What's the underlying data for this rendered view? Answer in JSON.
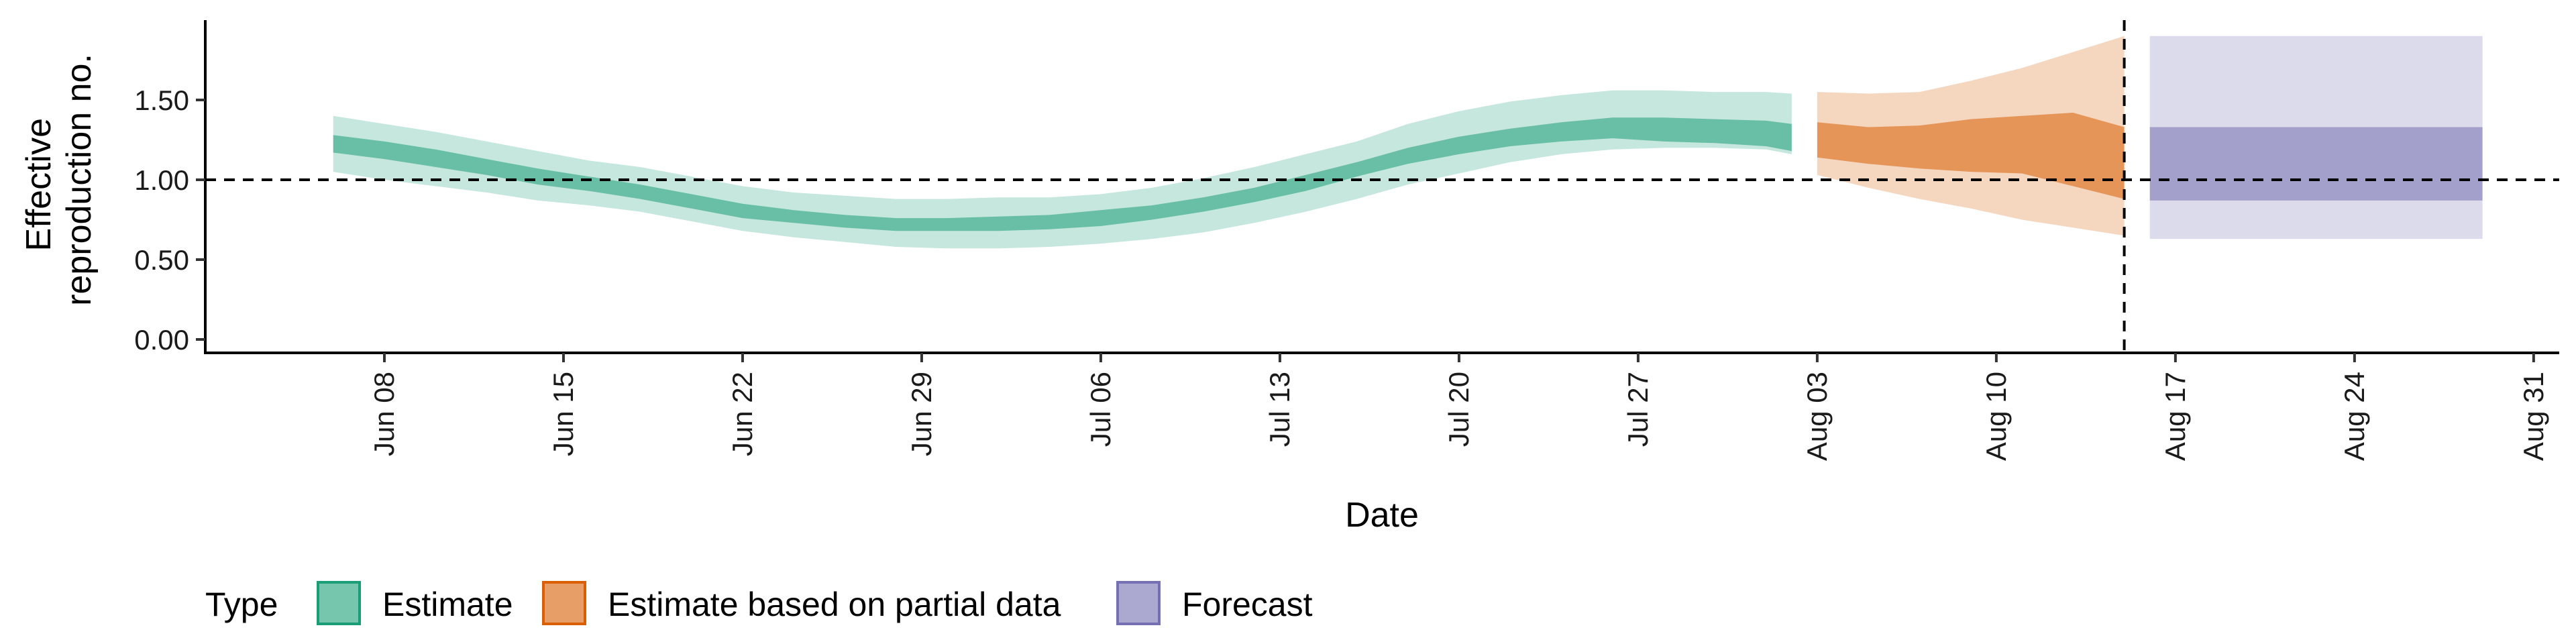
{
  "chart_data": {
    "type": "area",
    "xlabel": "Date",
    "ylabel_lines": [
      "Effective",
      "reproduction no."
    ],
    "ylim": [
      0,
      2.0
    ],
    "y_ticks": [
      0,
      0.5,
      1.0,
      1.5
    ],
    "y_tick_labels": [
      "0.00",
      "0.50",
      "1.00",
      "1.50"
    ],
    "x_range": [
      "2020-06-01",
      "2020-09-01"
    ],
    "x_ticks": [
      "2020-06-08",
      "2020-06-15",
      "2020-06-22",
      "2020-06-29",
      "2020-07-06",
      "2020-07-13",
      "2020-07-20",
      "2020-07-27",
      "2020-08-03",
      "2020-08-10",
      "2020-08-17",
      "2020-08-24",
      "2020-08-31"
    ],
    "x_tick_labels": [
      "Jun 08",
      "Jun 15",
      "Jun 22",
      "Jun 29",
      "Jul 06",
      "Jul 13",
      "Jul 20",
      "Jul 27",
      "Aug 03",
      "Aug 10",
      "Aug 17",
      "Aug 24",
      "Aug 31"
    ],
    "reference_hline": 1.0,
    "reference_vline": "2020-08-15",
    "grid": false,
    "legend": {
      "position": "bottom",
      "title": "Type",
      "entries": [
        "Estimate",
        "Estimate based on partial data",
        "Forecast"
      ]
    },
    "colors": {
      "Estimate": "#1b9e77",
      "Estimate based on partial data": "#d95f02",
      "Forecast": "#7570b3"
    },
    "series": [
      {
        "name": "Estimate",
        "date": [
          "2020-06-06",
          "2020-06-08",
          "2020-06-10",
          "2020-06-12",
          "2020-06-14",
          "2020-06-16",
          "2020-06-18",
          "2020-06-20",
          "2020-06-22",
          "2020-06-24",
          "2020-06-26",
          "2020-06-28",
          "2020-06-30",
          "2020-07-02",
          "2020-07-04",
          "2020-07-06",
          "2020-07-08",
          "2020-07-10",
          "2020-07-12",
          "2020-07-14",
          "2020-07-16",
          "2020-07-18",
          "2020-07-20",
          "2020-07-22",
          "2020-07-24",
          "2020-07-26",
          "2020-07-28",
          "2020-07-30",
          "2020-08-01",
          "2020-08-02"
        ],
        "lower_90": [
          1.05,
          1.0,
          0.96,
          0.92,
          0.87,
          0.84,
          0.8,
          0.74,
          0.68,
          0.64,
          0.61,
          0.58,
          0.57,
          0.57,
          0.58,
          0.6,
          0.63,
          0.67,
          0.73,
          0.8,
          0.88,
          0.97,
          1.04,
          1.11,
          1.16,
          1.19,
          1.2,
          1.2,
          1.19,
          1.16
        ],
        "upper_90": [
          1.4,
          1.35,
          1.3,
          1.24,
          1.18,
          1.12,
          1.08,
          1.02,
          0.96,
          0.92,
          0.9,
          0.88,
          0.88,
          0.89,
          0.89,
          0.91,
          0.95,
          1.01,
          1.08,
          1.16,
          1.24,
          1.35,
          1.43,
          1.49,
          1.53,
          1.56,
          1.56,
          1.55,
          1.55,
          1.54
        ],
        "lower_50": [
          1.17,
          1.13,
          1.08,
          1.03,
          0.97,
          0.93,
          0.88,
          0.82,
          0.76,
          0.73,
          0.7,
          0.68,
          0.68,
          0.68,
          0.69,
          0.71,
          0.75,
          0.8,
          0.86,
          0.93,
          1.02,
          1.1,
          1.16,
          1.21,
          1.24,
          1.26,
          1.24,
          1.23,
          1.21,
          1.18
        ],
        "upper_50": [
          1.28,
          1.24,
          1.19,
          1.13,
          1.07,
          1.02,
          0.97,
          0.91,
          0.85,
          0.81,
          0.78,
          0.76,
          0.76,
          0.77,
          0.78,
          0.81,
          0.84,
          0.89,
          0.95,
          1.03,
          1.11,
          1.2,
          1.27,
          1.32,
          1.36,
          1.39,
          1.39,
          1.38,
          1.37,
          1.35
        ]
      },
      {
        "name": "Estimate based on partial data",
        "date": [
          "2020-08-03",
          "2020-08-05",
          "2020-08-07",
          "2020-08-09",
          "2020-08-11",
          "2020-08-13",
          "2020-08-15"
        ],
        "lower_90": [
          1.03,
          0.95,
          0.88,
          0.82,
          0.75,
          0.7,
          0.65
        ],
        "upper_90": [
          1.55,
          1.54,
          1.55,
          1.62,
          1.7,
          1.8,
          1.9
        ],
        "lower_50": [
          1.14,
          1.1,
          1.07,
          1.05,
          1.04,
          0.96,
          0.88
        ],
        "upper_50": [
          1.36,
          1.33,
          1.34,
          1.38,
          1.4,
          1.42,
          1.33
        ]
      },
      {
        "name": "Forecast",
        "date": [
          "2020-08-16",
          "2020-08-29"
        ],
        "lower_90": [
          0.63,
          0.63
        ],
        "upper_90": [
          1.9,
          1.9
        ],
        "lower_50": [
          0.87,
          0.87
        ],
        "upper_50": [
          1.33,
          1.33
        ]
      }
    ]
  }
}
